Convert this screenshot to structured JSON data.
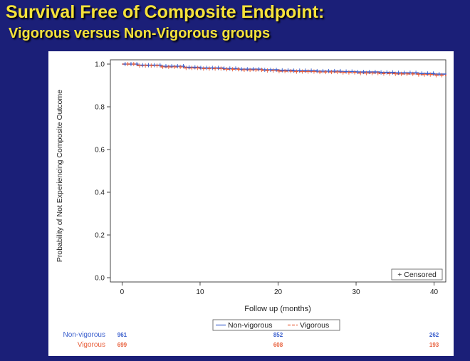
{
  "slide": {
    "title": "Survival Free of Composite Endpoint:",
    "subtitle": "Vigorous versus Non-Vigorous groups"
  },
  "colors": {
    "background": "#1b1f78",
    "title": "#f5e23a",
    "non_vigorous": "#3a5fcd",
    "vigorous": "#e8603c"
  },
  "chart_data": {
    "type": "line",
    "title": "",
    "xlabel": "Follow up (months)",
    "ylabel": "Probability of Not Experiencing Composite Outcome",
    "xlim": [
      -1.5,
      41.5
    ],
    "ylim": [
      -0.02,
      1.02
    ],
    "x_ticks": [
      0,
      10,
      20,
      30,
      40
    ],
    "y_ticks": [
      0.0,
      0.2,
      0.4,
      0.6,
      0.8,
      1.0
    ],
    "x_tick_labels": [
      "0",
      "10",
      "20",
      "30",
      "40"
    ],
    "y_tick_labels": [
      "0.0",
      "0.2",
      "0.4",
      "0.6",
      "0.8",
      "1.0"
    ],
    "grid": false,
    "legend_position": "bottom-center",
    "censor_legend_label": "+ Censored",
    "series": [
      {
        "name": "Non-vigorous",
        "color": "#3a5fcd",
        "dash": false,
        "x": [
          0,
          2,
          5,
          8,
          10,
          13,
          15,
          18,
          20,
          22,
          25,
          28,
          30,
          33,
          35,
          38,
          40,
          41.5
        ],
        "y": [
          1.0,
          0.995,
          0.99,
          0.985,
          0.982,
          0.979,
          0.976,
          0.973,
          0.971,
          0.969,
          0.967,
          0.965,
          0.963,
          0.961,
          0.959,
          0.956,
          0.953,
          0.951
        ]
      },
      {
        "name": "Vigorous",
        "color": "#e8603c",
        "dash": true,
        "x": [
          0,
          2,
          5,
          8,
          10,
          13,
          15,
          18,
          20,
          22,
          25,
          28,
          30,
          33,
          35,
          38,
          40,
          41.5
        ],
        "y": [
          1.0,
          0.993,
          0.987,
          0.982,
          0.979,
          0.976,
          0.973,
          0.97,
          0.967,
          0.965,
          0.963,
          0.961,
          0.958,
          0.956,
          0.954,
          0.951,
          0.948,
          0.944
        ]
      }
    ],
    "at_risk": {
      "x": [
        0,
        20,
        40
      ],
      "rows": [
        {
          "label": "Non-vigorous",
          "color": "#3a5fcd",
          "values": [
            "961",
            "852",
            "262"
          ]
        },
        {
          "label": "Vigorous",
          "color": "#e8603c",
          "values": [
            "699",
            "608",
            "193"
          ]
        }
      ]
    }
  }
}
